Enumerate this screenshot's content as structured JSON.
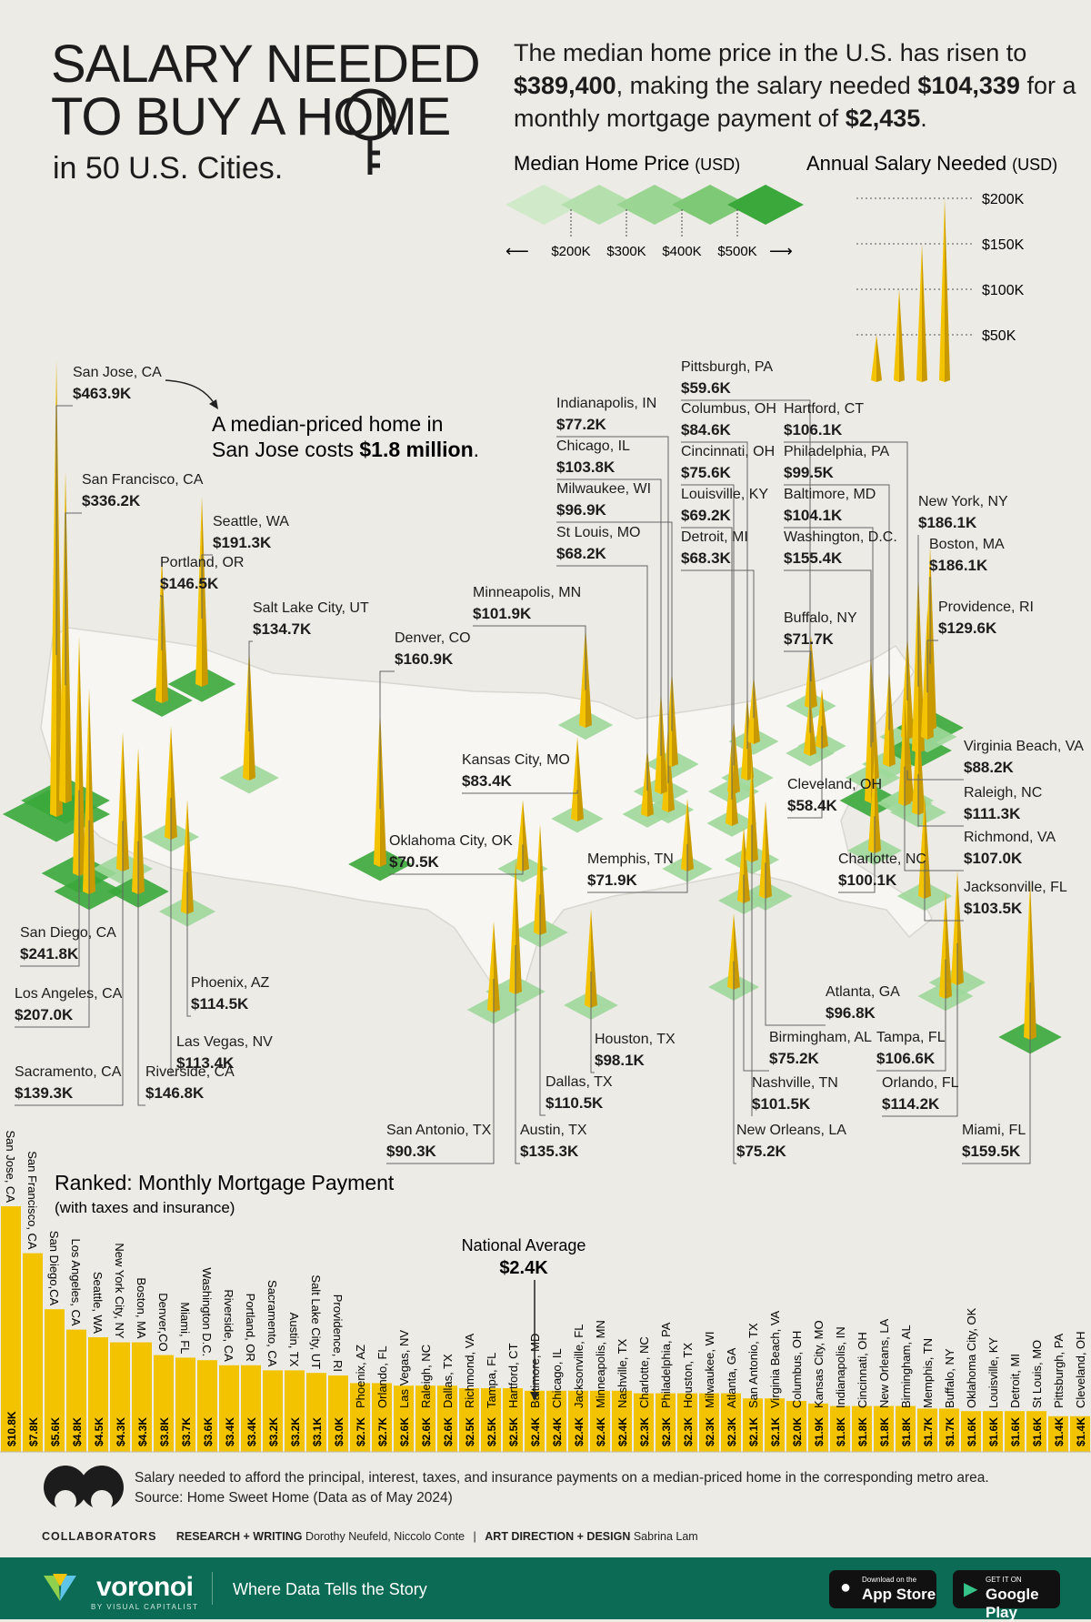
{
  "header": {
    "title_lines": [
      "SALARY NEEDED",
      "TO BUY A HOME"
    ],
    "subtitle": "in 50 U.S. Cities.",
    "intro": [
      "The median home price in the U.S. has risen to",
      "$389,400",
      ", making the salary needed ",
      "$104,339",
      "for a monthly mortgage payment of ",
      "$2,435",
      "."
    ]
  },
  "legend": {
    "price_title": "Median Home Price",
    "price_unit": "(USD)",
    "price_ticks": [
      "$200K",
      "$300K",
      "$400K",
      "$500K"
    ],
    "salary_title": "Annual Salary Needed",
    "salary_unit": "(USD)",
    "salary_ticks": [
      "$200K",
      "$150K",
      "$100K",
      "$50K"
    ]
  },
  "annotation": {
    "lines": [
      "A median-priced home in",
      "San Jose costs "
    ],
    "bold": "$1.8 million",
    "end": "."
  },
  "colors": {
    "spike_yellow": "#f3c300",
    "spike_dark": "#c99a00",
    "green_dark": "#3aa83a",
    "green_light": "#9fd89a",
    "map_land": "#f7f6f2",
    "bar_yellow": "#f3c300",
    "band_green": "#0c6b55"
  },
  "map_chart": {
    "type": "map-spikes",
    "title": "Annual Salary Needed (USD)",
    "cities": [
      {
        "name": "San Jose, CA",
        "salary": "$463.9K"
      },
      {
        "name": "San Francisco, CA",
        "salary": "$336.2K"
      },
      {
        "name": "Seattle, WA",
        "salary": "$191.3K"
      },
      {
        "name": "Portland, OR",
        "salary": "$146.5K"
      },
      {
        "name": "Salt Lake City, UT",
        "salary": "$134.7K"
      },
      {
        "name": "Denver, CO",
        "salary": "$160.9K"
      },
      {
        "name": "Minneapolis, MN",
        "salary": "$101.9K"
      },
      {
        "name": "Indianapolis, IN",
        "salary": "$77.2K"
      },
      {
        "name": "Chicago, IL",
        "salary": "$103.8K"
      },
      {
        "name": "Milwaukee, WI",
        "salary": "$96.9K"
      },
      {
        "name": "St Louis, MO",
        "salary": "$68.2K"
      },
      {
        "name": "Pittsburgh, PA",
        "salary": "$59.6K"
      },
      {
        "name": "Columbus, OH",
        "salary": "$84.6K"
      },
      {
        "name": "Cincinnati, OH",
        "salary": "$75.6K"
      },
      {
        "name": "Louisville, KY",
        "salary": "$69.2K"
      },
      {
        "name": "Detroit, MI",
        "salary": "$68.3K"
      },
      {
        "name": "Hartford, CT",
        "salary": "$106.1K"
      },
      {
        "name": "Philadelphia, PA",
        "salary": "$99.5K"
      },
      {
        "name": "Baltimore, MD",
        "salary": "$104.1K"
      },
      {
        "name": "Washington, D.C.",
        "salary": "$155.4K"
      },
      {
        "name": "New York, NY",
        "salary": "$186.1K"
      },
      {
        "name": "Boston, MA",
        "salary": "$186.1K"
      },
      {
        "name": "Providence, RI",
        "salary": "$129.6K"
      },
      {
        "name": "Buffalo, NY",
        "salary": "$71.7K"
      },
      {
        "name": "Virginia Beach, VA",
        "salary": "$88.2K"
      },
      {
        "name": "Raleigh, NC",
        "salary": "$111.3K"
      },
      {
        "name": "Richmond, VA",
        "salary": "$107.0K"
      },
      {
        "name": "Cleveland, OH",
        "salary": "$58.4K"
      },
      {
        "name": "Charlotte, NC",
        "salary": "$100.1K"
      },
      {
        "name": "Jacksonville, FL",
        "salary": "$103.5K"
      },
      {
        "name": "Kansas City, MO",
        "salary": "$83.4K"
      },
      {
        "name": "Oklahoma City, OK",
        "salary": "$70.5K"
      },
      {
        "name": "Memphis, TN",
        "salary": "$71.9K"
      },
      {
        "name": "San Diego, CA",
        "salary": "$241.8K"
      },
      {
        "name": "Los Angeles, CA",
        "salary": "$207.0K"
      },
      {
        "name": "Phoenix, AZ",
        "salary": "$114.5K"
      },
      {
        "name": "Las Vegas, NV",
        "salary": "$113.4K"
      },
      {
        "name": "Sacramento, CA",
        "salary": "$139.3K"
      },
      {
        "name": "Riverside, CA",
        "salary": "$146.8K"
      },
      {
        "name": "Atlanta, GA",
        "salary": "$96.8K"
      },
      {
        "name": "Birmingham, AL",
        "salary": "$75.2K"
      },
      {
        "name": "Nashville, TN",
        "salary": "$101.5K"
      },
      {
        "name": "New Orleans, LA",
        "salary": "$75.2K"
      },
      {
        "name": "Tampa, FL",
        "salary": "$106.6K"
      },
      {
        "name": "Orlando, FL",
        "salary": "$114.2K"
      },
      {
        "name": "Miami, FL",
        "salary": "$159.5K"
      },
      {
        "name": "Houston, TX",
        "salary": "$98.1K"
      },
      {
        "name": "Dallas, TX",
        "salary": "$110.5K"
      },
      {
        "name": "San Antonio, TX",
        "salary": "$90.3K"
      },
      {
        "name": "Austin, TX",
        "salary": "$135.3K"
      }
    ]
  },
  "chart_data": {
    "type": "bar",
    "title": "Ranked: Monthly Mortgage Payment",
    "subtitle": "(with taxes and insurance)",
    "reference": {
      "label": "National Average",
      "value_label": "$2.4K",
      "value": 2.435
    },
    "categories": [
      "San Jose, CA",
      "San Francisco, CA",
      "San Diego,CA",
      "Los Angeles, CA",
      "Seattle, WA",
      "New York City, NY",
      "Boston, MA",
      "Denver,CO",
      "Miami, FL",
      "Washington D.C.",
      "Riverside, CA",
      "Portland, OR",
      "Sacramento, CA",
      "Austin, TX",
      "Salt Lake City, UT",
      "Providence, RI",
      "Phoenix, AZ",
      "Orlando, FL",
      "Las Vegas, NV",
      "Raleigh, NC",
      "Dallas, TX",
      "Richmond, VA",
      "Tampa, FL",
      "Hartford, CT",
      "Baltimore, MD",
      "Chicago, IL",
      "Jacksonville, FL",
      "Minneapolis, MN",
      "Nashville, TX",
      "Charlotte, NC",
      "Philadelphia, PA",
      "Houston, TX",
      "Milwaukee, WI",
      "Atlanta, GA",
      "San Antonio, TX",
      "Virginia Beach, VA",
      "Columbus, OH",
      "Kansas City, MO",
      "Indianapolis, IN",
      "Cincinnati, OH",
      "New Orleans, LA",
      "Birmingham, AL",
      "Memphis, TN",
      "Buffalo, NY",
      "Oklahoma City, OK",
      "Louisville, KY",
      "Detroit, MI",
      "St Louis, MO",
      "Pittsburgh, PA",
      "Cleveland, OH"
    ],
    "value_labels": [
      "$10.8K",
      "$7.8K",
      "$5.6K",
      "$4.8K",
      "$4.5K",
      "$4.3K",
      "$4.3K",
      "$3.8K",
      "$3.7K",
      "$3.6K",
      "$3.4K",
      "$3.4K",
      "$3.2K",
      "$3.2K",
      "$3.1K",
      "$3.0K",
      "$2.7K",
      "$2.7K",
      "$2.6K",
      "$2.6K",
      "$2.6K",
      "$2.5K",
      "$2.5K",
      "$2.5K",
      "$2.4K",
      "$2.4K",
      "$2.4K",
      "$2.4K",
      "$2.4K",
      "$2.3K",
      "$2.3K",
      "$2.3K",
      "$2.3K",
      "$2.3K",
      "$2.1K",
      "$2.1K",
      "$2.0K",
      "$1.9K",
      "$1.8K",
      "$1.8K",
      "$1.8K",
      "$1.8K",
      "$1.7K",
      "$1.7K",
      "$1.6K",
      "$1.6K",
      "$1.6K",
      "$1.6K",
      "$1.4K",
      "$1.4K"
    ],
    "values": [
      10.8,
      7.8,
      5.6,
      4.8,
      4.5,
      4.3,
      4.3,
      3.8,
      3.7,
      3.6,
      3.4,
      3.4,
      3.2,
      3.2,
      3.1,
      3.0,
      2.7,
      2.7,
      2.6,
      2.6,
      2.6,
      2.5,
      2.5,
      2.5,
      2.4,
      2.4,
      2.4,
      2.4,
      2.4,
      2.3,
      2.3,
      2.3,
      2.3,
      2.3,
      2.1,
      2.1,
      2.0,
      1.9,
      1.8,
      1.8,
      1.8,
      1.8,
      1.7,
      1.7,
      1.6,
      1.6,
      1.6,
      1.6,
      1.4,
      1.4
    ],
    "units": "USD thousands per month"
  },
  "footer": {
    "note": "Salary needed to afford the principal, interest, taxes, and insurance payments on a median-priced home in the corresponding metro area.",
    "source": "Source: Home Sweet Home (Data as of May 2024)",
    "collab_label": "COLLABORATORS",
    "research_label": "RESEARCH + WRITING",
    "research_names": "Dorothy Neufeld, Niccolo Conte",
    "design_label": "ART DIRECTION + DESIGN",
    "design_names": "Sabrina Lam",
    "brand": "voronoi",
    "brand_sub": "BY VISUAL CAPITALIST",
    "tagline": "Where Data Tells the Story",
    "appstore_small": "Download on the",
    "appstore_big": "App Store",
    "gplay_small": "GET IT ON",
    "gplay_big": "Google Play"
  }
}
